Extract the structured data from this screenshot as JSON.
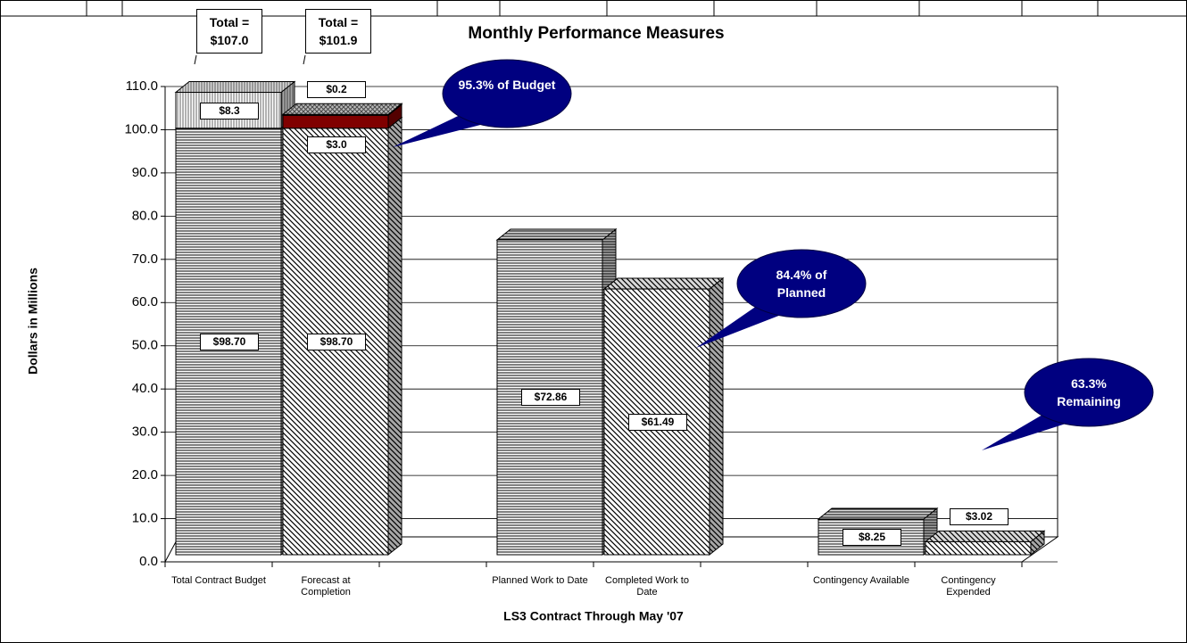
{
  "chart_data": {
    "type": "bar3d_stacked",
    "title": "Monthly Performance Measures",
    "y_label": "Dollars in Millions",
    "x_label": "LS3 Contract Through May '07",
    "categories": [
      "Total Contract Budget",
      "Forecast at Completion",
      null,
      "Planned Work to Date",
      "Completed Work to Date",
      null,
      "Contingency Available",
      "Contingency Expended"
    ],
    "series": [
      {
        "fills": [
          "hstripe",
          "dstripe",
          null,
          "hstripe",
          "dstripe",
          null,
          "hstripe",
          "dstripe"
        ],
        "values": [
          98.7,
          98.7,
          null,
          72.86,
          61.49,
          null,
          8.25,
          3.02
        ],
        "value_labels": [
          "$98.70",
          "$98.70",
          null,
          "$72.86",
          "$61.49",
          null,
          "$8.25",
          "$3.02"
        ]
      },
      {
        "fills": [
          "vstripe",
          "#800000",
          null,
          null,
          null,
          null,
          null,
          null
        ],
        "values": [
          8.3,
          3.0,
          null,
          null,
          null,
          null,
          null,
          null
        ],
        "value_labels": [
          "$8.3",
          "$3.0",
          null,
          null,
          null,
          null,
          null,
          null
        ]
      },
      {
        "fills": [
          null,
          "crosshatch",
          null,
          null,
          null,
          null,
          null,
          null
        ],
        "values": [
          null,
          0.2,
          null,
          null,
          null,
          null,
          null,
          null
        ],
        "value_labels": [
          null,
          "$0.2",
          null,
          null,
          null,
          null,
          null,
          null
        ]
      }
    ],
    "totals": [
      "Total = $107.0",
      "Total = $101.9"
    ],
    "callouts": [
      "95.3% of Budget",
      "84.4% of Planned",
      "63.3% Remaining"
    ],
    "ylim": [
      0,
      110
    ],
    "yticks": [
      {
        "value": 0,
        "label": "0.0"
      },
      {
        "value": 10,
        "label": "10.0"
      },
      {
        "value": 20,
        "label": "20.0"
      },
      {
        "value": 30,
        "label": "30.0"
      },
      {
        "value": 40,
        "label": "40.0"
      },
      {
        "value": 50,
        "label": "50.0"
      },
      {
        "value": 60,
        "label": "60.0"
      },
      {
        "value": 70,
        "label": "70.0"
      },
      {
        "value": 80,
        "label": "80.0"
      },
      {
        "value": 90,
        "label": "90.0"
      },
      {
        "value": 100,
        "label": "100.0"
      },
      {
        "value": 110,
        "label": "110.0"
      }
    ],
    "grid": true
  }
}
